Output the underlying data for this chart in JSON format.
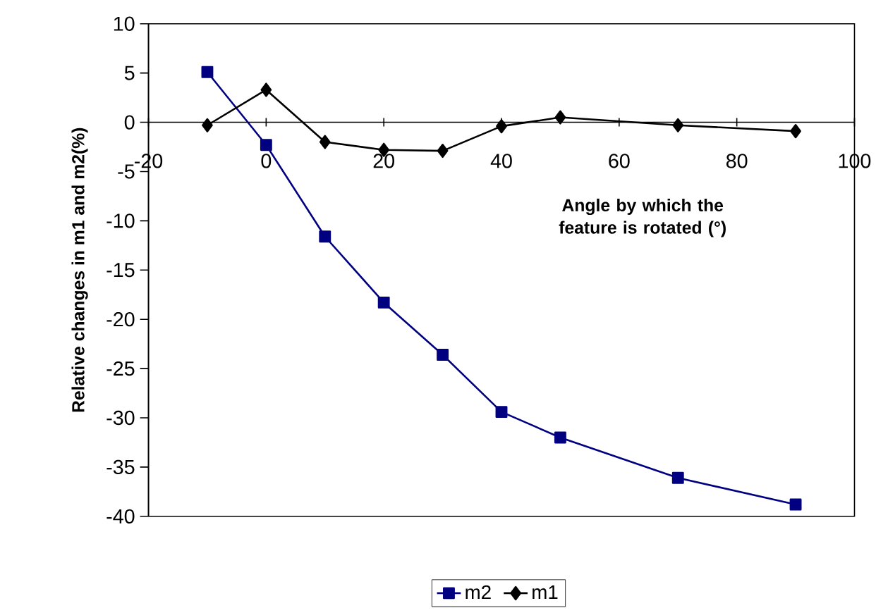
{
  "chart_data": {
    "type": "line",
    "xlabel": "Angle by which the feature is rotated (°)",
    "ylabel": "Relative changes in m1 and m2(%)",
    "x": [
      -10,
      0,
      10,
      20,
      30,
      40,
      50,
      70,
      90
    ],
    "series": [
      {
        "name": "m2",
        "color": "#000080",
        "marker": "square",
        "values": [
          5.1,
          -2.3,
          -11.6,
          -18.3,
          -23.6,
          -29.4,
          -32.0,
          -36.1,
          -38.8
        ]
      },
      {
        "name": "m1",
        "color": "#000000",
        "marker": "diamond",
        "values": [
          -0.3,
          3.3,
          -2.0,
          -2.8,
          -2.9,
          -0.4,
          0.5,
          -0.3,
          -0.9
        ]
      }
    ],
    "xlim": [
      -20,
      100
    ],
    "xticks": [
      -20,
      0,
      20,
      40,
      60,
      80,
      100
    ],
    "ylim": [
      -40,
      10
    ],
    "yticks": [
      -40,
      -35,
      -30,
      -25,
      -20,
      -15,
      -10,
      -5,
      0,
      5,
      10
    ],
    "legend": "bottom"
  }
}
